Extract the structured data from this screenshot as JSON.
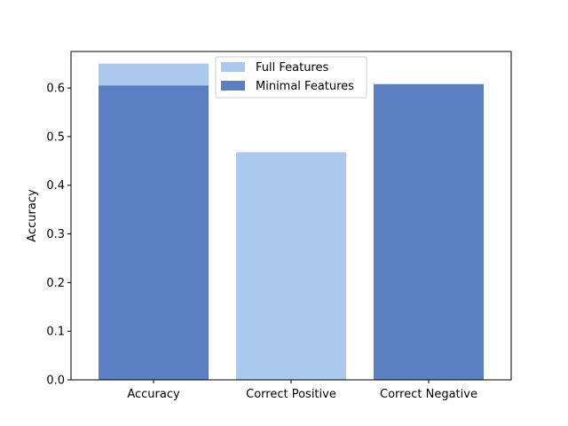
{
  "chart_data": {
    "type": "bar",
    "title": "",
    "xlabel": "",
    "ylabel": "Accuracy",
    "ylim": [
      0,
      0.675
    ],
    "yticks": [
      0.0,
      0.1,
      0.2,
      0.3,
      0.4,
      0.5,
      0.6
    ],
    "ytick_labels": [
      "0.0",
      "0.1",
      "0.2",
      "0.3",
      "0.4",
      "0.5",
      "0.6"
    ],
    "categories": [
      "Accuracy",
      "Correct Positive",
      "Correct Negative"
    ],
    "grid": false,
    "legend_position": "top-center",
    "series": [
      {
        "name": "Full Features",
        "color": "#abc9ec",
        "values": [
          0.65,
          0.468,
          null
        ]
      },
      {
        "name": "Minimal Features",
        "color": "#5a7fc2",
        "values": [
          0.605,
          null,
          0.608
        ]
      }
    ]
  }
}
